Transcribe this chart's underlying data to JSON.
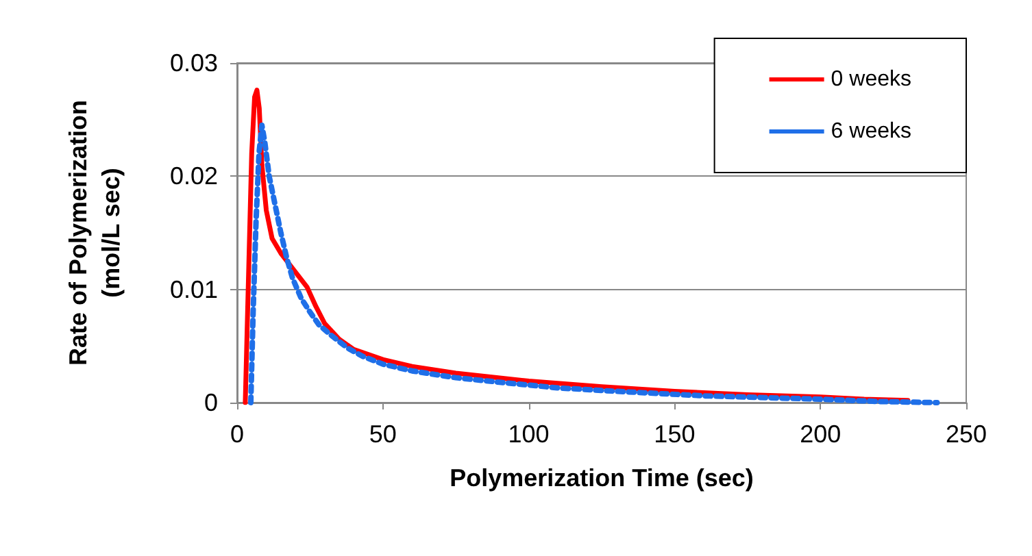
{
  "chart_data": {
    "type": "line",
    "xlabel": "Polymerization Time (sec)",
    "ylabel": "Rate of Polymerization\n(mol/L sec)",
    "xlim": [
      0,
      250
    ],
    "xticks": [
      0,
      50,
      100,
      150,
      200,
      250
    ],
    "ylim": [
      0,
      0.03
    ],
    "yticks": [
      0,
      0.01,
      0.02,
      0.03
    ],
    "grid": "y",
    "legend": "top right",
    "marker": "none",
    "series": [
      {
        "name": "0 weeks",
        "color": "#ff0000",
        "line_style": "solid",
        "x": [
          2.8,
          4,
          5,
          6,
          6.8,
          7.6,
          8.5,
          10,
          12,
          15,
          18,
          21,
          24,
          27,
          30,
          35,
          40,
          50,
          60,
          75,
          100,
          125,
          150,
          175,
          200,
          215,
          230
        ],
        "values": [
          0,
          0.012,
          0.022,
          0.027,
          0.0276,
          0.026,
          0.021,
          0.017,
          0.0145,
          0.0132,
          0.0122,
          0.0112,
          0.0102,
          0.0085,
          0.007,
          0.0056,
          0.0047,
          0.0038,
          0.0032,
          0.0026,
          0.0019,
          0.0014,
          0.001,
          0.0007,
          0.0005,
          0.0003,
          0.0002
        ]
      },
      {
        "name": "6 weeks",
        "color": "#1f6fe8",
        "line_style": "dotted",
        "x": [
          4.7,
          5.5,
          6.5,
          7.5,
          8.5,
          9.5,
          11,
          13,
          15,
          17,
          19,
          22,
          25,
          28,
          32,
          38,
          43,
          50,
          60,
          75,
          90,
          110,
          130,
          160,
          200,
          220,
          240
        ],
        "values": [
          0,
          0.008,
          0.016,
          0.022,
          0.0245,
          0.023,
          0.02,
          0.0175,
          0.015,
          0.0128,
          0.011,
          0.0092,
          0.008,
          0.0069,
          0.006,
          0.0048,
          0.0041,
          0.0034,
          0.0028,
          0.0022,
          0.0018,
          0.0013,
          0.001,
          0.0006,
          0.0003,
          0.0001,
          0
        ]
      }
    ]
  }
}
